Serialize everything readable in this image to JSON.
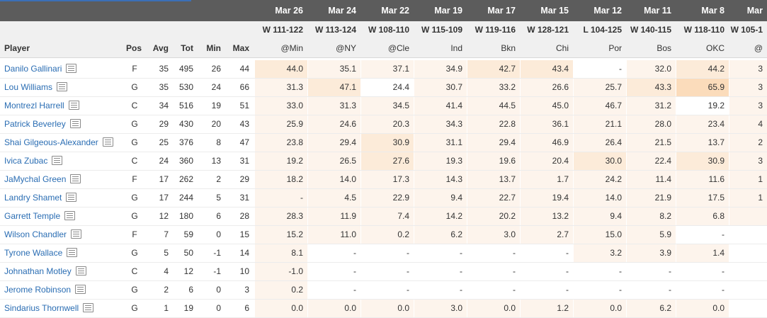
{
  "games": [
    {
      "date": "Mar 26",
      "result": "W 111-122",
      "opponent": "@Min"
    },
    {
      "date": "Mar 24",
      "result": "W 113-124",
      "opponent": "@NY"
    },
    {
      "date": "Mar 22",
      "result": "W 108-110",
      "opponent": "@Cle"
    },
    {
      "date": "Mar 19",
      "result": "W 115-109",
      "opponent": "Ind"
    },
    {
      "date": "Mar 17",
      "result": "W 119-116",
      "opponent": "Bkn"
    },
    {
      "date": "Mar 15",
      "result": "W 128-121",
      "opponent": "Chi"
    },
    {
      "date": "Mar 12",
      "result": "L 104-125",
      "opponent": "Por"
    },
    {
      "date": "Mar 11",
      "result": "W 140-115",
      "opponent": "Bos"
    },
    {
      "date": "Mar 8",
      "result": "W 118-110",
      "opponent": "OKC"
    },
    {
      "date": "Mar",
      "result": "W 105-1",
      "opponent": "@"
    }
  ],
  "headers": {
    "player": "Player",
    "pos": "Pos",
    "avg": "Avg",
    "tot": "Tot",
    "min": "Min",
    "max": "Max"
  },
  "colors": {
    "link": "#2a6db3",
    "heat_light": "#fdf4ec",
    "heat_mid": "#fcebd9",
    "heat_strong": "#fbdcbb",
    "header_bg": "#f0f0f0",
    "top_bar": "#5c5c5c",
    "accent": "#3b6fb6"
  },
  "players": [
    {
      "name": "Danilo Gallinari",
      "pos": "F",
      "avg": "35",
      "tot": "495",
      "min": "26",
      "max": "44",
      "vals": [
        "44.0",
        "35.1",
        "37.1",
        "34.9",
        "42.7",
        "43.4",
        "-",
        "32.0",
        "44.2",
        "3"
      ],
      "heat": [
        2,
        1,
        1,
        1,
        2,
        2,
        0,
        1,
        2,
        1
      ]
    },
    {
      "name": "Lou Williams",
      "pos": "G",
      "avg": "35",
      "tot": "530",
      "min": "24",
      "max": "66",
      "vals": [
        "31.3",
        "47.1",
        "24.4",
        "30.7",
        "33.2",
        "26.6",
        "25.7",
        "43.3",
        "65.9",
        "3"
      ],
      "heat": [
        1,
        2,
        0,
        1,
        1,
        1,
        1,
        2,
        3,
        1
      ]
    },
    {
      "name": "Montrezl Harrell",
      "pos": "C",
      "avg": "34",
      "tot": "516",
      "min": "19",
      "max": "51",
      "vals": [
        "33.0",
        "31.3",
        "34.5",
        "41.4",
        "44.5",
        "45.0",
        "46.7",
        "31.2",
        "19.2",
        "3"
      ],
      "heat": [
        1,
        1,
        1,
        1,
        1,
        1,
        1,
        1,
        0,
        1
      ]
    },
    {
      "name": "Patrick Beverley",
      "pos": "G",
      "avg": "29",
      "tot": "430",
      "min": "20",
      "max": "43",
      "vals": [
        "25.9",
        "24.6",
        "20.3",
        "34.3",
        "22.8",
        "36.1",
        "21.1",
        "28.0",
        "23.4",
        "4"
      ],
      "heat": [
        1,
        1,
        1,
        1,
        1,
        1,
        1,
        1,
        1,
        1
      ]
    },
    {
      "name": "Shai Gilgeous-Alexander",
      "pos": "G",
      "avg": "25",
      "tot": "376",
      "min": "8",
      "max": "47",
      "vals": [
        "23.8",
        "29.4",
        "30.9",
        "31.1",
        "29.4",
        "46.9",
        "26.4",
        "21.5",
        "13.7",
        "2"
      ],
      "heat": [
        1,
        1,
        2,
        1,
        1,
        1,
        1,
        1,
        1,
        1
      ]
    },
    {
      "name": "Ivica Zubac",
      "pos": "C",
      "avg": "24",
      "tot": "360",
      "min": "13",
      "max": "31",
      "vals": [
        "19.2",
        "26.5",
        "27.6",
        "19.3",
        "19.6",
        "20.4",
        "30.0",
        "22.4",
        "30.9",
        "3"
      ],
      "heat": [
        1,
        1,
        2,
        1,
        1,
        1,
        2,
        1,
        2,
        1
      ]
    },
    {
      "name": "JaMychal Green",
      "pos": "F",
      "avg": "17",
      "tot": "262",
      "min": "2",
      "max": "29",
      "vals": [
        "18.2",
        "14.0",
        "17.3",
        "14.3",
        "13.7",
        "1.7",
        "24.2",
        "11.4",
        "11.6",
        "1"
      ],
      "heat": [
        1,
        1,
        1,
        1,
        1,
        1,
        1,
        1,
        1,
        1
      ]
    },
    {
      "name": "Landry Shamet",
      "pos": "G",
      "avg": "17",
      "tot": "244",
      "min": "5",
      "max": "31",
      "vals": [
        "-",
        "4.5",
        "22.9",
        "9.4",
        "22.7",
        "19.4",
        "14.0",
        "21.9",
        "17.5",
        "1"
      ],
      "heat": [
        1,
        1,
        1,
        1,
        1,
        1,
        1,
        1,
        1,
        1
      ]
    },
    {
      "name": "Garrett Temple",
      "pos": "G",
      "avg": "12",
      "tot": "180",
      "min": "6",
      "max": "28",
      "vals": [
        "28.3",
        "11.9",
        "7.4",
        "14.2",
        "20.2",
        "13.2",
        "9.4",
        "8.2",
        "6.8",
        ""
      ],
      "heat": [
        1,
        1,
        1,
        1,
        1,
        1,
        1,
        1,
        1,
        1
      ]
    },
    {
      "name": "Wilson Chandler",
      "pos": "F",
      "avg": "7",
      "tot": "59",
      "min": "0",
      "max": "15",
      "vals": [
        "15.2",
        "11.0",
        "0.2",
        "6.2",
        "3.0",
        "2.7",
        "15.0",
        "5.9",
        "-",
        ""
      ],
      "heat": [
        1,
        1,
        1,
        1,
        1,
        1,
        1,
        1,
        0,
        0
      ]
    },
    {
      "name": "Tyrone Wallace",
      "pos": "G",
      "avg": "5",
      "tot": "50",
      "min": "-1",
      "max": "14",
      "vals": [
        "8.1",
        "-",
        "-",
        "-",
        "-",
        "-",
        "3.2",
        "3.9",
        "1.4",
        ""
      ],
      "heat": [
        1,
        0,
        0,
        0,
        0,
        0,
        1,
        1,
        1,
        0
      ]
    },
    {
      "name": "Johnathan Motley",
      "pos": "C",
      "avg": "4",
      "tot": "12",
      "min": "-1",
      "max": "10",
      "vals": [
        "-1.0",
        "-",
        "-",
        "-",
        "-",
        "-",
        "-",
        "-",
        "-",
        ""
      ],
      "heat": [
        1,
        0,
        0,
        0,
        0,
        0,
        0,
        0,
        0,
        0
      ]
    },
    {
      "name": "Jerome Robinson",
      "pos": "G",
      "avg": "2",
      "tot": "6",
      "min": "0",
      "max": "3",
      "vals": [
        "0.2",
        "-",
        "-",
        "-",
        "-",
        "-",
        "-",
        "-",
        "-",
        ""
      ],
      "heat": [
        1,
        0,
        0,
        0,
        0,
        0,
        0,
        0,
        0,
        0
      ]
    },
    {
      "name": "Sindarius Thornwell",
      "pos": "G",
      "avg": "1",
      "tot": "19",
      "min": "0",
      "max": "6",
      "vals": [
        "0.0",
        "0.0",
        "0.0",
        "3.0",
        "0.0",
        "1.2",
        "0.0",
        "6.2",
        "0.0",
        ""
      ],
      "heat": [
        1,
        1,
        1,
        1,
        1,
        1,
        1,
        1,
        1,
        0
      ]
    }
  ]
}
